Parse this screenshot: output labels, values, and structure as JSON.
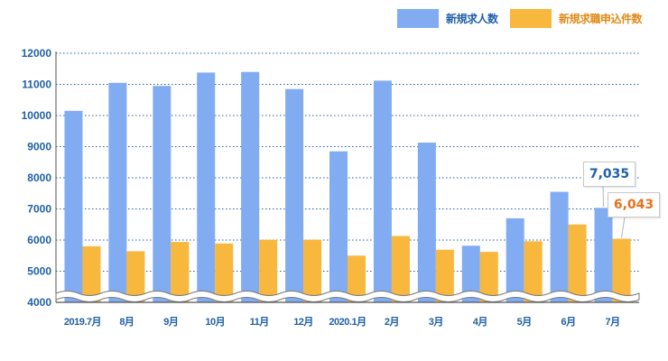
{
  "chart_data": {
    "type": "bar",
    "categories": [
      "2019.7月",
      "8月",
      "9月",
      "10月",
      "11月",
      "12月",
      "2020.1月",
      "2月",
      "3月",
      "4月",
      "5月",
      "6月",
      "7月"
    ],
    "series": [
      {
        "name": "新規求人数",
        "color": "#82acf2",
        "values": [
          10150,
          11050,
          10950,
          11380,
          11400,
          10850,
          8850,
          11120,
          9130,
          5820,
          6700,
          7550,
          7035
        ]
      },
      {
        "name": "新規求職申込件数",
        "color": "#f8b73d",
        "values": [
          5800,
          5640,
          5940,
          5890,
          6010,
          6010,
          5500,
          6130,
          5690,
          5620,
          5960,
          6500,
          6043
        ]
      }
    ],
    "ylim": [
      4000,
      12000
    ],
    "yticks": [
      4000,
      5000,
      6000,
      7000,
      8000,
      9000,
      10000,
      11000,
      12000
    ],
    "axis_break": true,
    "grid": "dotted horizontal",
    "legend": "top-right",
    "annotations": [
      {
        "text": "7,035",
        "category": "7月",
        "series": "新規求人数",
        "color": "#1f5fa8"
      },
      {
        "text": "6,043",
        "category": "7月",
        "series": "新規求職申込件数",
        "color": "#e8701b"
      }
    ],
    "colors": {
      "axis_text": "#1f5fa8",
      "grid": "#1f5fa8"
    }
  }
}
